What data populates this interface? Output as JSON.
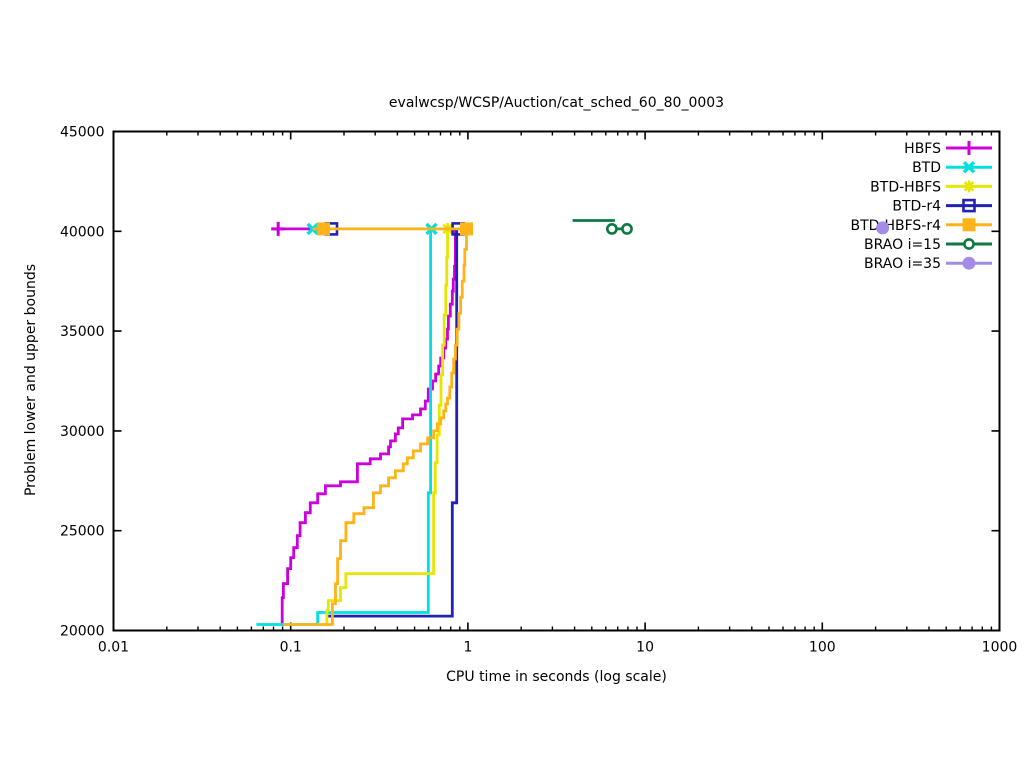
{
  "chart_data": {
    "type": "line",
    "title": "evalwcsp/WCSP/Auction/cat_sched_60_80_0003",
    "xlabel": "CPU time in seconds (log scale)",
    "ylabel": "Problem lower and upper bounds",
    "grid": false,
    "legend_position": "top-right-inside",
    "x_axis": {
      "scale": "log",
      "min": 0.01,
      "max": 1000,
      "ticks": [
        0.01,
        0.1,
        1,
        10,
        100,
        1000
      ],
      "tick_labels": [
        "0.01",
        "0.1",
        "1",
        "10",
        "100",
        "1000"
      ]
    },
    "y_axis": {
      "scale": "linear",
      "min": 20000,
      "max": 45000,
      "ticks": [
        20000,
        25000,
        30000,
        35000,
        40000,
        45000
      ],
      "tick_labels": [
        "20000",
        "25000",
        "30000",
        "35000",
        "40000",
        "45000"
      ]
    },
    "upper_bound_value": 40120,
    "series": [
      {
        "name": "HBFS",
        "color": "#cc00dd",
        "marker": "plus",
        "lb_steps": [
          [
            0.089,
            20300
          ],
          [
            0.0895,
            21650
          ],
          [
            0.091,
            22350
          ],
          [
            0.096,
            23100
          ],
          [
            0.1,
            23650
          ],
          [
            0.104,
            24150
          ],
          [
            0.109,
            24750
          ],
          [
            0.113,
            25400
          ],
          [
            0.121,
            25900
          ],
          [
            0.129,
            26400
          ],
          [
            0.142,
            26850
          ],
          [
            0.157,
            27250
          ],
          [
            0.191,
            27450
          ],
          [
            0.238,
            28350
          ],
          [
            0.281,
            28600
          ],
          [
            0.321,
            28850
          ],
          [
            0.357,
            29200
          ],
          [
            0.366,
            29500
          ],
          [
            0.39,
            29850
          ],
          [
            0.405,
            30150
          ],
          [
            0.428,
            30600
          ],
          [
            0.487,
            30800
          ],
          [
            0.54,
            31100
          ],
          [
            0.575,
            31500
          ],
          [
            0.598,
            32100
          ],
          [
            0.631,
            32500
          ],
          [
            0.657,
            32850
          ],
          [
            0.684,
            33250
          ],
          [
            0.702,
            33650
          ],
          [
            0.73,
            34150
          ],
          [
            0.749,
            34600
          ],
          [
            0.767,
            35100
          ],
          [
            0.776,
            35750
          ],
          [
            0.796,
            36350
          ],
          [
            0.817,
            37000
          ],
          [
            0.827,
            37600
          ],
          [
            0.84,
            38250
          ],
          [
            0.85,
            40120
          ]
        ],
        "ub_segments": [
          [
            [
              0.079,
              40120
            ],
            [
              0.145,
              40120
            ]
          ]
        ],
        "markers": [
          [
            0.085,
            40120
          ]
        ]
      },
      {
        "name": "BTD",
        "color": "#00e0e0",
        "marker": "cross",
        "lb_steps": [
          [
            0.064,
            20300
          ],
          [
            0.142,
            20900
          ],
          [
            0.598,
            26900
          ],
          [
            0.616,
            40120
          ]
        ],
        "ub_segments": [],
        "markers": [
          [
            0.133,
            40120
          ],
          [
            0.623,
            40120
          ]
        ]
      },
      {
        "name": "BTD-HBFS",
        "color": "#e6e600",
        "marker": "star",
        "lb_steps": [
          [
            0.151,
            20300
          ],
          [
            0.16,
            21000
          ],
          [
            0.163,
            21500
          ],
          [
            0.191,
            22150
          ],
          [
            0.205,
            22850
          ],
          [
            0.64,
            26900
          ],
          [
            0.655,
            28400
          ],
          [
            0.67,
            29800
          ],
          [
            0.69,
            31300
          ],
          [
            0.705,
            32800
          ],
          [
            0.72,
            34300
          ],
          [
            0.735,
            35800
          ],
          [
            0.75,
            37300
          ],
          [
            0.76,
            38700
          ],
          [
            0.768,
            40120
          ]
        ],
        "ub_segments": [],
        "markers": [
          [
            0.768,
            40120
          ]
        ]
      },
      {
        "name": "BTD-r4",
        "color": "#2222b2",
        "marker": "square-open",
        "lb_steps": [
          [
            0.163,
            20720
          ],
          [
            0.817,
            26400
          ],
          [
            0.864,
            40120
          ]
        ],
        "ub_segments": [],
        "markers": [
          [
            0.17,
            40120
          ],
          [
            0.88,
            40120
          ]
        ]
      },
      {
        "name": "BTD-HBFS-r4",
        "color": "#ffb319",
        "marker": "square-filled",
        "lb_steps": [
          [
            0.091,
            20300
          ],
          [
            0.172,
            21350
          ],
          [
            0.179,
            22350
          ],
          [
            0.184,
            23600
          ],
          [
            0.191,
            24500
          ],
          [
            0.205,
            25400
          ],
          [
            0.227,
            25850
          ],
          [
            0.259,
            26150
          ],
          [
            0.293,
            26900
          ],
          [
            0.321,
            27250
          ],
          [
            0.357,
            27650
          ],
          [
            0.39,
            28000
          ],
          [
            0.432,
            28350
          ],
          [
            0.455,
            28650
          ],
          [
            0.492,
            29000
          ],
          [
            0.54,
            29350
          ],
          [
            0.592,
            29650
          ],
          [
            0.64,
            30000
          ],
          [
            0.673,
            30350
          ],
          [
            0.702,
            30650
          ],
          [
            0.73,
            31000
          ],
          [
            0.749,
            31350
          ],
          [
            0.767,
            31650
          ],
          [
            0.79,
            32200
          ],
          [
            0.81,
            32900
          ],
          [
            0.83,
            33600
          ],
          [
            0.85,
            34300
          ],
          [
            0.87,
            35100
          ],
          [
            0.89,
            35900
          ],
          [
            0.91,
            36700
          ],
          [
            0.93,
            37500
          ],
          [
            0.95,
            38300
          ],
          [
            0.96,
            39100
          ],
          [
            0.982,
            40120
          ]
        ],
        "ub_segments": [
          [
            [
              0.133,
              40120
            ],
            [
              0.982,
              40120
            ]
          ]
        ],
        "markers": [
          [
            0.153,
            40120
          ],
          [
            0.982,
            40120
          ]
        ]
      },
      {
        "name": "BRAO i=15",
        "color": "#0a7a40",
        "marker": "circle-open",
        "lb_steps": [],
        "ub_segments": [
          [
            [
              3.9,
              40540
            ],
            [
              6.75,
              40540
            ]
          ],
          [
            [
              6.2,
              40120
            ],
            [
              8.1,
              40120
            ]
          ]
        ],
        "markers": [
          [
            6.5,
            40120
          ],
          [
            7.9,
            40120
          ]
        ]
      },
      {
        "name": "BRAO i=35",
        "color": "#a38ce8",
        "marker": "circle-filled",
        "lb_steps": [],
        "ub_segments": [],
        "markers": [
          [
            219,
            40170
          ]
        ]
      }
    ]
  }
}
